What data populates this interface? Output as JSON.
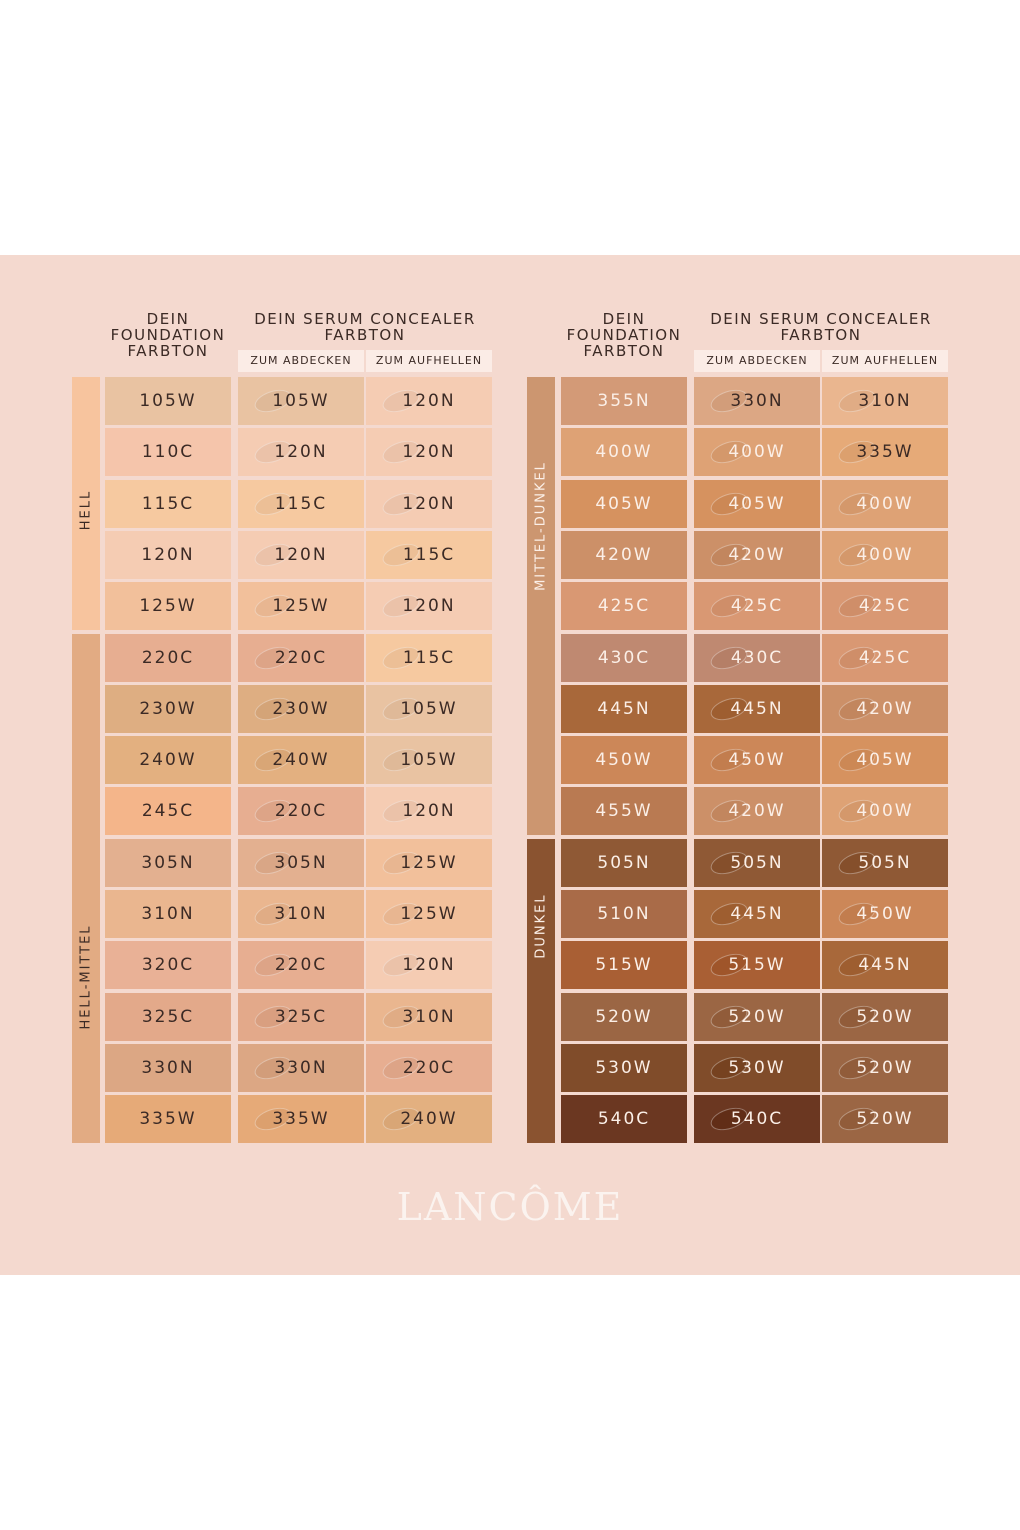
{
  "brand": "LANCÔME",
  "header": {
    "foundation": "DEIN FOUNDATION FARBTON",
    "concealer": "DEIN SERUM CONCEALER FARBTON",
    "cover": "ZUM ABDECKEN",
    "brighten": "ZUM AUFHELLEN"
  },
  "left_table": {
    "bands": [
      {
        "label": "HELL",
        "rows": 5,
        "color": "#f7c49e"
      },
      {
        "label": "HELL-MITTEL",
        "rows": 10,
        "color": "#e2ab83"
      }
    ],
    "rows": [
      {
        "shade": "105W",
        "cover": "105W",
        "brighten": "120N",
        "c1": "#e9c3a2",
        "c2": "#e9c3a2",
        "c3": "#f5ccb3"
      },
      {
        "shade": "110C",
        "cover": "120N",
        "brighten": "120N",
        "c1": "#f5c5ab",
        "c2": "#f5ccb3",
        "c3": "#f5ccb3"
      },
      {
        "shade": "115C",
        "cover": "115C",
        "brighten": "120N",
        "c1": "#f6c9a0",
        "c2": "#f6c9a0",
        "c3": "#f5ccb3"
      },
      {
        "shade": "120N",
        "cover": "120N",
        "brighten": "115C",
        "c1": "#f5ccb3",
        "c2": "#f5ccb3",
        "c3": "#f6c9a0"
      },
      {
        "shade": "125W",
        "cover": "125W",
        "brighten": "120N",
        "c1": "#f2c09b",
        "c2": "#f2c09b",
        "c3": "#f5ccb3"
      },
      {
        "shade": "220C",
        "cover": "220C",
        "brighten": "115C",
        "c1": "#e7ae91",
        "c2": "#e7ae91",
        "c3": "#f6c9a0"
      },
      {
        "shade": "230W",
        "cover": "230W",
        "brighten": "105W",
        "c1": "#deae82",
        "c2": "#deae82",
        "c3": "#e9c3a2"
      },
      {
        "shade": "240W",
        "cover": "240W",
        "brighten": "105W",
        "c1": "#e3b080",
        "c2": "#e3b080",
        "c3": "#e9c3a2"
      },
      {
        "shade": "245C",
        "cover": "220C",
        "brighten": "120N",
        "c1": "#f4b58a",
        "c2": "#e7ae91",
        "c3": "#f5ccb3"
      },
      {
        "shade": "305N",
        "cover": "305N",
        "brighten": "125W",
        "c1": "#e3b090",
        "c2": "#e3b090",
        "c3": "#f2c09b"
      },
      {
        "shade": "310N",
        "cover": "310N",
        "brighten": "125W",
        "c1": "#eab68f",
        "c2": "#eab68f",
        "c3": "#f2c09b"
      },
      {
        "shade": "320C",
        "cover": "220C",
        "brighten": "120N",
        "c1": "#e9b196",
        "c2": "#e7ae91",
        "c3": "#f5ccb3"
      },
      {
        "shade": "325C",
        "cover": "325C",
        "brighten": "310N",
        "c1": "#e3a98a",
        "c2": "#e3a98a",
        "c3": "#eab68f"
      },
      {
        "shade": "330N",
        "cover": "330N",
        "brighten": "220C",
        "c1": "#dca784",
        "c2": "#dca784",
        "c3": "#e7ae91"
      },
      {
        "shade": "335W",
        "cover": "335W",
        "brighten": "240W",
        "c1": "#e6aa78",
        "c2": "#e6aa78",
        "c3": "#e3b080"
      }
    ]
  },
  "right_table": {
    "bands": [
      {
        "label": "MITTEL-DUNKEL",
        "rows": 9,
        "color": "#cc9670"
      },
      {
        "label": "DUNKEL",
        "rows": 6,
        "color": "#8a5330"
      }
    ],
    "rows": [
      {
        "shade": "355N",
        "cover": "330N",
        "brighten": "310N",
        "c1": "#d39a77",
        "c2": "#dca784",
        "c3": "#eab68f"
      },
      {
        "shade": "400W",
        "cover": "400W",
        "brighten": "335W",
        "c1": "#dea275",
        "c2": "#dea275",
        "c3": "#e6aa78"
      },
      {
        "shade": "405W",
        "cover": "405W",
        "brighten": "400W",
        "c1": "#d6925f",
        "c2": "#d6925f",
        "c3": "#dea275"
      },
      {
        "shade": "420W",
        "cover": "420W",
        "brighten": "400W",
        "c1": "#cc9068",
        "c2": "#cc9068",
        "c3": "#dea275"
      },
      {
        "shade": "425C",
        "cover": "425C",
        "brighten": "425C",
        "c1": "#d99873",
        "c2": "#d99873",
        "c3": "#d99873"
      },
      {
        "shade": "430C",
        "cover": "430C",
        "brighten": "425C",
        "c1": "#bf8971",
        "c2": "#bf8971",
        "c3": "#d99873"
      },
      {
        "shade": "445N",
        "cover": "445N",
        "brighten": "420W",
        "c1": "#a8683a",
        "c2": "#a8683a",
        "c3": "#cc9068"
      },
      {
        "shade": "450W",
        "cover": "450W",
        "brighten": "405W",
        "c1": "#cc8758",
        "c2": "#cc8758",
        "c3": "#d6925f"
      },
      {
        "shade": "455W",
        "cover": "420W",
        "brighten": "400W",
        "c1": "#b97a52",
        "c2": "#cc9068",
        "c3": "#dea275"
      },
      {
        "shade": "505N",
        "cover": "505N",
        "brighten": "505N",
        "c1": "#8f5935",
        "c2": "#8f5935",
        "c3": "#8f5935"
      },
      {
        "shade": "510N",
        "cover": "445N",
        "brighten": "450W",
        "c1": "#a96b48",
        "c2": "#a8683a",
        "c3": "#cc8758"
      },
      {
        "shade": "515W",
        "cover": "515W",
        "brighten": "445N",
        "c1": "#a95f34",
        "c2": "#a95f34",
        "c3": "#a8683a"
      },
      {
        "shade": "520W",
        "cover": "520W",
        "brighten": "520W",
        "c1": "#9b6644",
        "c2": "#9b6644",
        "c3": "#9b6644"
      },
      {
        "shade": "530W",
        "cover": "530W",
        "brighten": "520W",
        "c1": "#804c2a",
        "c2": "#804c2a",
        "c3": "#9b6644"
      },
      {
        "shade": "540C",
        "cover": "540C",
        "brighten": "520W",
        "c1": "#6b3721",
        "c2": "#6b3721",
        "c3": "#9b6644"
      }
    ]
  }
}
